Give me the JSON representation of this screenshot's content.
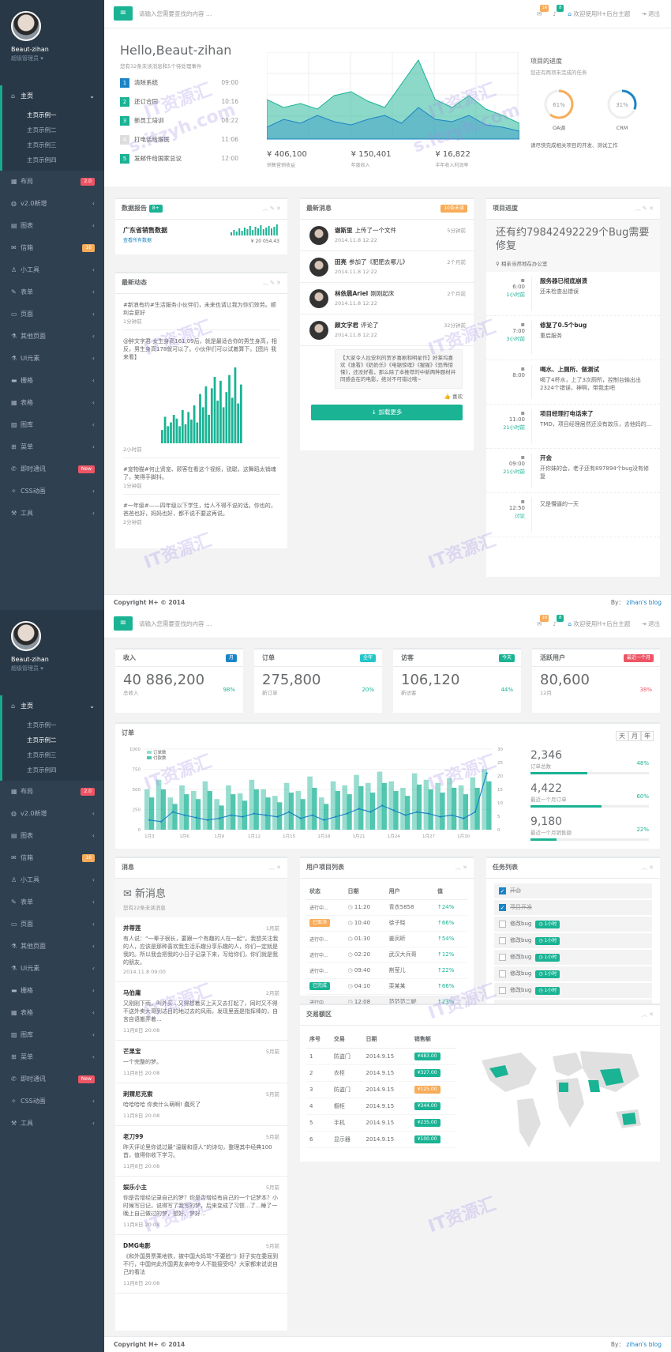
{
  "user": {
    "name": "Beaut-zihan",
    "role": "超级管理员"
  },
  "nav": {
    "main_label": "主页",
    "sub": [
      "主页示例一",
      "主页示例二",
      "主页示例三",
      "主页示例四"
    ],
    "items": [
      {
        "label": "布局",
        "badge": "2.0",
        "icon": "grid-icon"
      },
      {
        "label": "v2.0新增",
        "icon": "globe-icon"
      },
      {
        "label": "图表",
        "icon": "chart-icon"
      },
      {
        "label": "信箱",
        "badge": "16",
        "icon": "mail-icon"
      },
      {
        "label": "小工具",
        "icon": "user-icon"
      },
      {
        "label": "表单",
        "icon": "edit-icon"
      },
      {
        "label": "页面",
        "icon": "desktop-icon"
      },
      {
        "label": "其他页面",
        "icon": "flask-icon"
      },
      {
        "label": "UI元素",
        "icon": "flask-icon"
      },
      {
        "label": "栅格",
        "icon": "laptop-icon"
      },
      {
        "label": "表格",
        "icon": "table-icon"
      },
      {
        "label": "图库",
        "icon": "picture-icon"
      },
      {
        "label": "菜单",
        "icon": "sitemap-icon"
      },
      {
        "label": "即时通讯",
        "badge": "New",
        "icon": "comments-icon"
      },
      {
        "label": "CSS动画",
        "icon": "magic-icon"
      },
      {
        "label": "工具",
        "icon": "cutlery-icon"
      }
    ]
  },
  "topbar": {
    "search_placeholder": "请输入您需要查找的内容 …",
    "welcome": "欢迎使用H+后台主题",
    "mail_count": "16",
    "bell_count": "8",
    "logout": "退出"
  },
  "s1": {
    "hello": "Hello,Beaut-zihan",
    "hello_sub": "您有32条未读消息和5个待处理事件",
    "tasks": [
      {
        "n": "1",
        "text": "清除系统",
        "time": "09:00",
        "color": "#1c84c6"
      },
      {
        "n": "2",
        "text": "还订合同",
        "time": "10:16",
        "color": "#1ab394"
      },
      {
        "n": "3",
        "text": "新员工培训",
        "time": "08:22",
        "color": "#1ab394"
      },
      {
        "n": "4",
        "text": "打电话给猴医",
        "time": "11:06",
        "color": "#dddddd"
      },
      {
        "n": "5",
        "text": "发邮件给国家总议",
        "time": "12:00",
        "color": "#1ab394"
      }
    ],
    "stats": [
      {
        "value": "¥ 406,100",
        "label": "销售营销收益"
      },
      {
        "value": "¥ 150,401",
        "label": "年度收入"
      },
      {
        "value": "¥ 16,822",
        "label": "半年收入利润率"
      }
    ],
    "progress": {
      "title": "项目的进度",
      "sub": "您还有两项未完成的任务",
      "oa_pct": "61%",
      "oa_label": "OA调",
      "crm_pct": "31%",
      "crm_label": "CRM",
      "note": "请尽快完成相关项目的开发、测试工作"
    },
    "report": {
      "title": "数据报告",
      "badge": "8+",
      "name": "广东省销售数据",
      "sub": "查看所有数据",
      "value": "¥ 20 054.43"
    },
    "feed": {
      "title": "最新动态",
      "items": [
        {
          "text": "#新浪有约#生活服务小伙伴们，未来也请让我为你们效劳。顺利会更好",
          "time": "1分钟前"
        },
        {
          "text": "@醉文字君 女生身高161,09后，就是最适合你的男生身高，相反，男生身高178就可以了。小伙伴们可以试着算下。【图片 我来看】",
          "time": "2小时前"
        },
        {
          "text": "#宠物猫#何止贤宠、顾客在看这个视频，锐聪，这舞蹈太销魂了，笑得手脚抖。",
          "time": "1分钟前"
        },
        {
          "text": "#一年级#——四年级以下学生，给人不得不说的话。你也的，爸爸也好，妈妈也好，都不说不要这再说。",
          "time": "2分钟前"
        }
      ],
      "bars": [
        14,
        28,
        18,
        22,
        30,
        26,
        18,
        35,
        20,
        33,
        25,
        40,
        22,
        52,
        38,
        60,
        30,
        58,
        70,
        45,
        66,
        38,
        54,
        72,
        48,
        80,
        42,
        62
      ]
    },
    "messages": {
      "title": "最新消息",
      "badge": "10条未读",
      "items": [
        {
          "name": "谢斯里",
          "action": "上传了一个文件",
          "date": "2014.11.8 12:22",
          "ago": "5分钟前"
        },
        {
          "name": "田亮",
          "action": "参加了《肥肥去哪儿》",
          "date": "2014.11.8 12:22",
          "ago": "2个月前"
        },
        {
          "name": "林依晨Ariel",
          "action": "刚刚起床",
          "date": "2014.11.8 12:22",
          "ago": "2个月前"
        },
        {
          "name": "颜文字君",
          "action": "评论了",
          "date": "2014.11.8 12:22",
          "ago": "32分钟前"
        }
      ],
      "quote": "【大家令人拉安利的贺岁喜剧和明星作】好莱坞喜欢《谁看》《奶奶乐》《电锯惊魂》《猩猩》《恐怖惊悚》，还没好看，那么除了本推荐的中新两种题材并同感会在的电影，绝对不可错过哦~",
      "like": "喜欢",
      "load_more": "加载更多"
    },
    "timeline": {
      "title": "项目进度",
      "headline": "还有约79842492229个Bug需要修复",
      "location": "相亲当然地在办公室",
      "events": [
        {
          "time": "6:00",
          "ago": "1小时前",
          "title": "服务器已彻底崩溃",
          "text": "还未检查出错误"
        },
        {
          "time": "7:00",
          "ago": "3小时前",
          "title": "修复了0.5个bug",
          "text": "重启服务"
        },
        {
          "time": "8:00",
          "ago": "",
          "title": "喝水、上厕所、做测试",
          "text": "喝了4杯水，上了3次厕所，控制台输出出2324个错误，神啊，带我走吧"
        },
        {
          "time": "11:00",
          "ago": "21小时前",
          "title": "项目经理打电话来了",
          "text": "TMD，项目经理居然还没有故乐，去他妈的..."
        },
        {
          "time": "09:00",
          "ago": "21小时前",
          "title": "开会",
          "text": "开你妹的会，老子还有897894个bug没有修复"
        },
        {
          "time": "12:50",
          "ago": "讨论",
          "title": "",
          "text": "又是懵逼的一天"
        }
      ]
    }
  },
  "s2": {
    "cards": [
      {
        "title": "收入",
        "badge": "月",
        "badge_color": "#1c84c6",
        "value": "40 886,200",
        "sub": "总收入",
        "pct": "98%"
      },
      {
        "title": "订单",
        "badge": "全年",
        "badge_color": "#23c6c8",
        "value": "275,800",
        "sub": "新订单",
        "pct": "20%"
      },
      {
        "title": "访客",
        "badge": "今天",
        "badge_color": "#1ab394",
        "value": "106,120",
        "sub": "新访客",
        "pct": "44%"
      },
      {
        "title": "活跃用户",
        "badge": "最近一个月",
        "badge_color": "#ed5565",
        "value": "80,600",
        "sub": "12月",
        "pct": "38%"
      }
    ],
    "orders": {
      "title": "订单",
      "tabs": [
        "天",
        "月",
        "年"
      ],
      "legend": [
        "订单数",
        "付款数"
      ],
      "side": [
        {
          "value": "2,346",
          "label": "订单总数",
          "pct": "48%",
          "fill": 0.48
        },
        {
          "value": "4,422",
          "label": "最近一个月订单",
          "pct": "60%",
          "fill": 0.6
        },
        {
          "value": "9,180",
          "label": "最近一个月销售额",
          "pct": "22%",
          "fill": 0.22
        }
      ]
    },
    "chart_data": {
      "type": "bar",
      "categories": [
        "1月3",
        "",
        "",
        "1月6",
        "",
        "",
        "1月9",
        "",
        "",
        "1月12",
        "",
        "",
        "1月15",
        "",
        "",
        "1月18",
        "",
        "",
        "1月21",
        "",
        "",
        "1月24",
        "",
        "",
        "1月27",
        "",
        "",
        "1月30",
        "",
        ""
      ],
      "series": [
        {
          "name": "订单数",
          "values": [
            50,
            62,
            40,
            55,
            48,
            60,
            38,
            55,
            45,
            62,
            50,
            42,
            58,
            48,
            66,
            40,
            60,
            55,
            68,
            58,
            72,
            60,
            52,
            70,
            62,
            58,
            64,
            55,
            65,
            75
          ]
        },
        {
          "name": "付款数",
          "values": [
            40,
            50,
            32,
            44,
            38,
            48,
            30,
            44,
            36,
            50,
            40,
            34,
            46,
            38,
            52,
            32,
            48,
            44,
            54,
            46,
            58,
            48,
            42,
            56,
            50,
            46,
            52,
            44,
            52,
            60
          ]
        }
      ],
      "line": [
        12,
        10,
        22,
        18,
        15,
        12,
        14,
        18,
        16,
        20,
        18,
        16,
        22,
        14,
        18,
        12,
        16,
        20,
        26,
        22,
        30,
        24,
        18,
        22,
        20,
        16,
        18,
        14,
        22,
        70
      ],
      "ylim": [
        0,
        1000
      ],
      "y_ticks": [
        "0",
        "250",
        "500",
        "750",
        "1000"
      ],
      "y2_ticks": [
        "0",
        "5",
        "10",
        "15",
        "20",
        "25",
        "30"
      ]
    },
    "inbox": {
      "title": "消息",
      "heading": "新消息",
      "sub": "您有22条未读消息",
      "items": [
        {
          "name": "并蒂莲",
          "ago": "1月前",
          "text": "有人说：“一辈子很长，要跟一个有趣的人在一起”。我想关注我的人，应该是那种喜欢我生活乐趣分享乐趣的人，你们一定就是我的。所以我会把我的小日子记录下来，写给你们，你们就是我的朋友。",
          "date": "2014.11.8 09:00"
        },
        {
          "name": "马伯庸",
          "ago": "2月前",
          "text": "又刚刚下雨，叫外买...又得想着买上天又去打起了，同时又不得不送外卖大哥到达目的地过去的风雨，发现里面是指挥棒的，自言自语搬弄着...",
          "date": "11月8日 20:08"
        },
        {
          "name": "芒果宝",
          "ago": "5月前",
          "text": "一个完整的梦。",
          "date": "11月8日 20:08"
        },
        {
          "name": "刺猬尼克索",
          "ago": "5月前",
          "text": "哈哈哈哈 你卖什么萌啊! 蠢死了",
          "date": "11月8日 20:08"
        },
        {
          "name": "老刀99",
          "ago": "5月前",
          "text": "昨天评论里你说过最“温暖和感人”的诗句，整理其中经典100首，值得你收下学习。",
          "date": "11月8日 20:08"
        },
        {
          "name": "娱乐小主",
          "ago": "5月前",
          "text": "你是否增经记录自己的梦？你是否增经有自己的一个记梦本？小时候写日记，说得写了我写的梦，后来变成了习惯...了...睡了一晚上自己做过的梦，想好，梦好...",
          "date": "11月8日 20:08"
        },
        {
          "name": "DMG电影",
          "ago": "5月前",
          "text": "《和外国男票乘地铁，被中国大妈骂“不要脸”》好子实在委屈到不行，中国何此外国男友亲吻令人不能接受吗？大家都来说说自己的看法",
          "date": "11月8日 20:08"
        }
      ]
    },
    "projects": {
      "title": "用户项目列表",
      "headers": [
        "状态",
        "日期",
        "用户",
        "值"
      ],
      "rows": [
        {
          "status": "进行中...",
          "time": "11:20",
          "user": "青衣5858",
          "value": "24%",
          "hl": ""
        },
        {
          "status": "已取消",
          "time": "10:40",
          "user": "徐子晓",
          "value": "66%",
          "hl": "#f8ac59"
        },
        {
          "status": "进行中...",
          "time": "01:30",
          "user": "姜凤昕",
          "value": "54%",
          "hl": ""
        },
        {
          "status": "进行中...",
          "time": "02:20",
          "user": "武汉大兵哥",
          "value": "12%",
          "hl": ""
        },
        {
          "status": "进行中...",
          "time": "09:40",
          "user": "荆莹儿",
          "value": "22%",
          "hl": ""
        },
        {
          "status": "已完成",
          "time": "04:10",
          "user": "栾某某",
          "value": "66%",
          "hl": "#1ab394"
        },
        {
          "status": "进行中...",
          "time": "12:08",
          "user": "范范范二妮",
          "value": "23%",
          "hl": ""
        }
      ]
    },
    "tasks": {
      "title": "任务列表",
      "items": [
        {
          "text": "开会",
          "checked": true,
          "badge": ""
        },
        {
          "text": "项目开发",
          "checked": true,
          "badge": ""
        },
        {
          "text": "修改bug",
          "checked": false,
          "badge": "1小时"
        },
        {
          "text": "修改bug",
          "checked": false,
          "badge": "1小时"
        },
        {
          "text": "修改bug",
          "checked": false,
          "badge": "1小时"
        },
        {
          "text": "修改bug",
          "checked": false,
          "badge": "1小时"
        },
        {
          "text": "修改bug",
          "checked": false,
          "badge": "1小时"
        },
        {
          "text": "修改bug",
          "checked": false,
          "badge": "1小时"
        }
      ]
    },
    "sales": {
      "title": "交易额区",
      "headers": [
        "序号",
        "交易",
        "日期",
        "销售额"
      ],
      "rows": [
        {
          "n": "1",
          "item": "防盗门",
          "date": "2014.9.15",
          "amount": "¥483.00",
          "color": "#1ab394"
        },
        {
          "n": "2",
          "item": "衣柜",
          "date": "2014.9.15",
          "amount": "¥327.00",
          "color": "#1ab394"
        },
        {
          "n": "3",
          "item": "防盗门",
          "date": "2014.9.15",
          "amount": "¥125.00",
          "color": "#f8ac59"
        },
        {
          "n": "4",
          "item": "橱柜",
          "date": "2014.9.15",
          "amount": "¥344.00",
          "color": "#1ab394"
        },
        {
          "n": "5",
          "item": "手机",
          "date": "2014.9.15",
          "amount": "¥235.00",
          "color": "#1ab394"
        },
        {
          "n": "6",
          "item": "显示器",
          "date": "2014.9.15",
          "amount": "¥100.00",
          "color": "#1ab394"
        }
      ]
    }
  },
  "footer": {
    "copyright": "Copyright H+ © 2014",
    "by": "By：",
    "link": "zihan's blog"
  },
  "watermark": {
    "cn": "IT资源汇",
    "url": "s.itzyh.com"
  }
}
